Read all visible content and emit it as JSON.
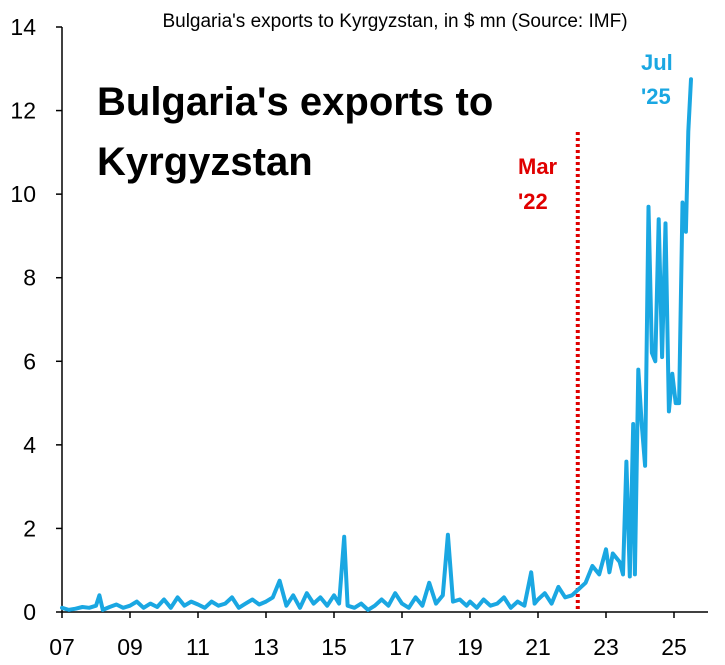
{
  "colors": {
    "series": "#1aa7e2",
    "marker": "#e00000",
    "axis": "#000000"
  },
  "chart_data": {
    "type": "line",
    "subtitle": "Bulgaria's exports to Kyrgyzstan, in $ mn (Source: IMF)",
    "title_lines": [
      "Bulgaria's exports to",
      "Kyrgyzstan"
    ],
    "ylim": [
      0,
      14
    ],
    "yticks": [
      "0",
      "2",
      "4",
      "6",
      "8",
      "10",
      "12",
      "14"
    ],
    "xlim": [
      2007.0,
      2026.0
    ],
    "xticks": [
      {
        "year": 2007,
        "label": "07"
      },
      {
        "year": 2009,
        "label": "09"
      },
      {
        "year": 2011,
        "label": "11"
      },
      {
        "year": 2013,
        "label": "13"
      },
      {
        "year": 2015,
        "label": "15"
      },
      {
        "year": 2017,
        "label": "17"
      },
      {
        "year": 2019,
        "label": "19"
      },
      {
        "year": 2021,
        "label": "21"
      },
      {
        "year": 2023,
        "label": "23"
      },
      {
        "year": 2025,
        "label": "25"
      }
    ],
    "grid": false,
    "marker_line": {
      "x": 2022.17,
      "label_lines": [
        "Mar",
        "'22"
      ]
    },
    "end_label_lines": [
      "Jul",
      "'25"
    ],
    "points": [
      [
        2007.0,
        0.1
      ],
      [
        2007.2,
        0.05
      ],
      [
        2007.4,
        0.08
      ],
      [
        2007.6,
        0.12
      ],
      [
        2007.8,
        0.1
      ],
      [
        2008.0,
        0.15
      ],
      [
        2008.1,
        0.4
      ],
      [
        2008.2,
        0.05
      ],
      [
        2008.4,
        0.12
      ],
      [
        2008.6,
        0.18
      ],
      [
        2008.8,
        0.1
      ],
      [
        2009.0,
        0.15
      ],
      [
        2009.2,
        0.25
      ],
      [
        2009.4,
        0.1
      ],
      [
        2009.6,
        0.2
      ],
      [
        2009.8,
        0.12
      ],
      [
        2010.0,
        0.3
      ],
      [
        2010.2,
        0.1
      ],
      [
        2010.4,
        0.35
      ],
      [
        2010.6,
        0.15
      ],
      [
        2010.8,
        0.25
      ],
      [
        2011.0,
        0.18
      ],
      [
        2011.2,
        0.1
      ],
      [
        2011.4,
        0.25
      ],
      [
        2011.6,
        0.15
      ],
      [
        2011.8,
        0.2
      ],
      [
        2012.0,
        0.35
      ],
      [
        2012.2,
        0.1
      ],
      [
        2012.4,
        0.2
      ],
      [
        2012.6,
        0.3
      ],
      [
        2012.8,
        0.18
      ],
      [
        2013.0,
        0.25
      ],
      [
        2013.2,
        0.35
      ],
      [
        2013.4,
        0.75
      ],
      [
        2013.6,
        0.15
      ],
      [
        2013.8,
        0.4
      ],
      [
        2014.0,
        0.1
      ],
      [
        2014.2,
        0.45
      ],
      [
        2014.4,
        0.2
      ],
      [
        2014.6,
        0.35
      ],
      [
        2014.8,
        0.15
      ],
      [
        2015.0,
        0.4
      ],
      [
        2015.15,
        0.2
      ],
      [
        2015.3,
        1.8
      ],
      [
        2015.4,
        0.15
      ],
      [
        2015.6,
        0.1
      ],
      [
        2015.8,
        0.2
      ],
      [
        2016.0,
        0.05
      ],
      [
        2016.2,
        0.15
      ],
      [
        2016.4,
        0.3
      ],
      [
        2016.6,
        0.15
      ],
      [
        2016.8,
        0.45
      ],
      [
        2017.0,
        0.2
      ],
      [
        2017.2,
        0.1
      ],
      [
        2017.4,
        0.35
      ],
      [
        2017.6,
        0.15
      ],
      [
        2017.8,
        0.7
      ],
      [
        2018.0,
        0.2
      ],
      [
        2018.2,
        0.4
      ],
      [
        2018.35,
        1.85
      ],
      [
        2018.5,
        0.25
      ],
      [
        2018.7,
        0.3
      ],
      [
        2018.9,
        0.15
      ],
      [
        2019.0,
        0.25
      ],
      [
        2019.2,
        0.1
      ],
      [
        2019.4,
        0.3
      ],
      [
        2019.6,
        0.15
      ],
      [
        2019.8,
        0.2
      ],
      [
        2020.0,
        0.35
      ],
      [
        2020.2,
        0.1
      ],
      [
        2020.4,
        0.25
      ],
      [
        2020.6,
        0.15
      ],
      [
        2020.8,
        0.95
      ],
      [
        2020.9,
        0.2
      ],
      [
        2021.0,
        0.3
      ],
      [
        2021.2,
        0.45
      ],
      [
        2021.4,
        0.2
      ],
      [
        2021.6,
        0.6
      ],
      [
        2021.8,
        0.35
      ],
      [
        2022.0,
        0.4
      ],
      [
        2022.2,
        0.55
      ],
      [
        2022.4,
        0.7
      ],
      [
        2022.6,
        1.1
      ],
      [
        2022.8,
        0.9
      ],
      [
        2023.0,
        1.5
      ],
      [
        2023.1,
        0.95
      ],
      [
        2023.2,
        1.4
      ],
      [
        2023.4,
        1.2
      ],
      [
        2023.5,
        0.9
      ],
      [
        2023.6,
        3.6
      ],
      [
        2023.7,
        0.85
      ],
      [
        2023.8,
        4.5
      ],
      [
        2023.85,
        0.9
      ],
      [
        2023.95,
        5.8
      ],
      [
        2024.05,
        4.5
      ],
      [
        2024.15,
        3.5
      ],
      [
        2024.25,
        9.7
      ],
      [
        2024.35,
        6.2
      ],
      [
        2024.45,
        6.0
      ],
      [
        2024.55,
        9.4
      ],
      [
        2024.65,
        6.1
      ],
      [
        2024.75,
        9.3
      ],
      [
        2024.85,
        4.8
      ],
      [
        2024.95,
        5.7
      ],
      [
        2025.05,
        5.0
      ],
      [
        2025.15,
        5.0
      ],
      [
        2025.25,
        9.8
      ],
      [
        2025.35,
        9.1
      ],
      [
        2025.42,
        11.5
      ],
      [
        2025.5,
        12.75
      ]
    ]
  }
}
